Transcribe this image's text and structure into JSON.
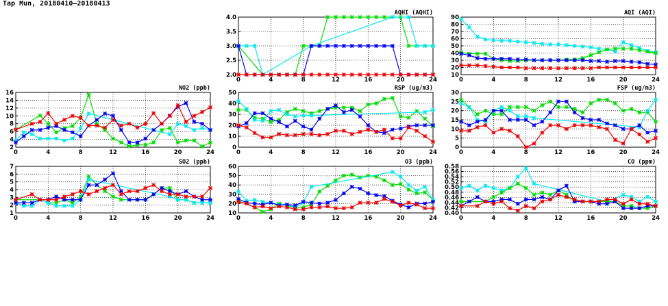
{
  "page_title": "Tap Mun, 20180410–20180413",
  "colors": {
    "red": "#ee0000",
    "blue": "#0000ee",
    "green": "#00dd00",
    "cyan": "#00e8f0"
  },
  "chart_data": [
    {
      "id": "no2",
      "type": "line",
      "title": "NO2 (ppb)",
      "ylim": [
        2,
        16
      ],
      "yticks": [
        2,
        4,
        6,
        8,
        10,
        12,
        14,
        16
      ],
      "ytick_decimals": 0,
      "xlim": [
        0,
        24
      ],
      "xticks": [
        0,
        4,
        8,
        12,
        16,
        20,
        24
      ],
      "grid": true,
      "series": [
        {
          "name": "green",
          "values": [
            6.5,
            null,
            null,
            10.1,
            8,
            5.8,
            6.9,
            7.4,
            9.5,
            15.4,
            8,
            6.4,
            4.2,
            3.2,
            2.2,
            2.6,
            2.6,
            3.2,
            6.4,
            6.9,
            3.2,
            3.7,
            3.7,
            2.2,
            3.2
          ]
        },
        {
          "name": "cyan",
          "values": [
            3.7,
            5.8,
            5.3,
            4.2,
            4.2,
            4.2,
            3.7,
            4.2,
            6.9,
            10.6,
            null,
            null,
            null,
            null,
            null,
            null,
            null,
            null,
            null,
            5.3,
            8,
            7.4,
            6.4,
            6.9,
            6.4
          ]
        },
        {
          "name": "blue",
          "values": [
            3.2,
            4.8,
            6.4,
            6.4,
            7,
            7.4,
            6.4,
            5.8,
            4.8,
            7.5,
            9,
            10.6,
            10,
            6.4,
            3.2,
            3.2,
            4.2,
            6.4,
            8,
            10.1,
            12.3,
            13.3,
            8.5,
            8,
            6.4
          ]
        },
        {
          "name": "red",
          "values": [
            6.5,
            null,
            8,
            8.5,
            10.7,
            8,
            9,
            10,
            9.5,
            7.5,
            7.5,
            7,
            9,
            7.5,
            8,
            7,
            8,
            10.7,
            8,
            10,
            12.7,
            8.5,
            10,
            11,
            12.2
          ]
        }
      ]
    },
    {
      "id": "so2",
      "type": "line",
      "title": "SO2 (ppb)",
      "ylim": [
        1,
        7
      ],
      "yticks": [
        1,
        2,
        3,
        4,
        5,
        6,
        7
      ],
      "ytick_decimals": 0,
      "xlim": [
        0,
        24
      ],
      "xticks": [
        0,
        4,
        8,
        12,
        16,
        20,
        24
      ],
      "grid": true,
      "series": [
        {
          "name": "green",
          "values": [
            2.7,
            null,
            null,
            2.7,
            2.3,
            2.3,
            2.7,
            2.3,
            3.1,
            5.7,
            4.6,
            3.8,
            3.1,
            2.7,
            2.7,
            2.7,
            2.7,
            3.4,
            4.2,
            4.2,
            2.7,
            2.7,
            2.3,
            2.3,
            2.3
          ]
        },
        {
          "name": "cyan",
          "values": [
            2.3,
            1.9,
            1.9,
            2.7,
            2.3,
            1.9,
            1.9,
            1.9,
            2.7,
            5.3,
            null,
            null,
            null,
            null,
            null,
            null,
            null,
            null,
            null,
            3.1,
            2.7,
            2.7,
            2.3,
            2.3,
            2.3
          ]
        },
        {
          "name": "blue",
          "values": [
            2.3,
            2.3,
            2.3,
            2.7,
            2.7,
            3.1,
            2.7,
            2.7,
            2.7,
            4.6,
            4.6,
            5.3,
            6.1,
            3.8,
            2.7,
            2.7,
            2.7,
            3.4,
            4.2,
            3.8,
            3.4,
            3.8,
            3.1,
            2.7,
            2.7
          ]
        },
        {
          "name": "red",
          "values": [
            2.7,
            null,
            3.4,
            2.7,
            2.7,
            2.7,
            3.1,
            3.4,
            3.8,
            3.4,
            3.8,
            4.2,
            4.6,
            3.4,
            3.8,
            3.8,
            4.2,
            4.6,
            3.8,
            3.4,
            3.4,
            3.1,
            3.1,
            3.1,
            4.2
          ]
        }
      ]
    },
    {
      "id": "aqhi",
      "type": "line",
      "title": "AQHI (AQHI)",
      "ylim": [
        2,
        4
      ],
      "yticks": [
        2,
        2.5,
        3,
        3.5,
        4
      ],
      "ytick_decimals": 1,
      "xlim": [
        0,
        24
      ],
      "xticks": [
        0,
        4,
        8,
        12,
        16,
        20,
        24
      ],
      "grid": true,
      "series": [
        {
          "name": "green",
          "values": [
            3,
            null,
            null,
            2,
            2,
            2,
            2,
            2,
            3,
            3,
            3,
            4,
            4,
            4,
            4,
            4,
            4,
            4,
            4,
            4,
            4,
            3,
            3,
            3,
            3
          ]
        },
        {
          "name": "cyan",
          "values": [
            3,
            3,
            3,
            2,
            null,
            null,
            null,
            null,
            null,
            3,
            null,
            null,
            null,
            null,
            null,
            null,
            null,
            null,
            null,
            4,
            null,
            4,
            3,
            3,
            3
          ]
        },
        {
          "name": "blue",
          "values": [
            3,
            2,
            2,
            2,
            2,
            2,
            2,
            2,
            2,
            3,
            3,
            3,
            3,
            3,
            3,
            3,
            3,
            3,
            3,
            3,
            2,
            2,
            2,
            2,
            2
          ]
        },
        {
          "name": "red",
          "values": [
            2,
            2,
            2,
            2,
            2,
            2,
            2,
            2,
            2,
            2,
            2,
            2,
            2,
            2,
            2,
            2,
            2,
            2,
            2,
            2,
            2,
            2,
            2,
            2,
            2
          ]
        }
      ]
    },
    {
      "id": "rsp",
      "type": "line",
      "title": "RSP (ug/m3)",
      "ylim": [
        0,
        50
      ],
      "yticks": [
        0,
        10,
        20,
        30,
        40,
        50
      ],
      "ytick_decimals": 0,
      "xlim": [
        0,
        24
      ],
      "xticks": [
        0,
        4,
        8,
        12,
        16,
        20,
        24
      ],
      "grid": true,
      "series": [
        {
          "name": "green",
          "values": [
            34,
            34,
            27,
            26,
            23,
            25,
            32,
            35,
            33,
            31,
            33,
            35,
            36,
            36,
            36,
            33,
            39,
            40,
            44,
            45,
            28,
            27,
            33,
            26,
            19
          ]
        },
        {
          "name": "cyan",
          "values": [
            42,
            35,
            25,
            24,
            33,
            34,
            30,
            28,
            29,
            29,
            null,
            null,
            null,
            null,
            null,
            null,
            null,
            null,
            null,
            null,
            null,
            null,
            null,
            32,
            34
          ]
        },
        {
          "name": "blue",
          "values": [
            19,
            22,
            31,
            31,
            26,
            23,
            19,
            24,
            19,
            16,
            26,
            35,
            38,
            32,
            34,
            28,
            20,
            14,
            13,
            16,
            17,
            19,
            20,
            20,
            20
          ]
        },
        {
          "name": "red",
          "values": [
            20,
            18,
            13,
            9,
            9,
            12,
            11,
            11,
            12,
            12,
            11,
            12,
            15,
            15,
            12,
            14,
            16,
            14,
            16,
            8,
            8,
            18,
            15,
            10,
            5
          ]
        }
      ]
    },
    {
      "id": "o3",
      "type": "line",
      "title": "O3 (ppb)",
      "ylim": [
        10,
        60
      ],
      "yticks": [
        10,
        20,
        30,
        40,
        50,
        60
      ],
      "ytick_decimals": 0,
      "xlim": [
        0,
        24
      ],
      "xticks": [
        0,
        4,
        8,
        12,
        16,
        20,
        24
      ],
      "grid": true,
      "series": [
        {
          "name": "green",
          "values": [
            23,
            null,
            16,
            11,
            14,
            20,
            18,
            15,
            16,
            19,
            33,
            39,
            45,
            50,
            51,
            48,
            50,
            49,
            45,
            40,
            41,
            35,
            31,
            32,
            24
          ]
        },
        {
          "name": "cyan",
          "values": [
            33,
            23,
            24,
            22,
            21,
            19,
            19,
            16,
            21,
            38,
            null,
            null,
            null,
            null,
            null,
            null,
            null,
            null,
            null,
            54,
            49,
            40,
            34,
            38,
            24
          ]
        },
        {
          "name": "blue",
          "values": [
            25,
            21,
            20,
            19,
            21,
            18,
            19,
            18,
            22,
            21,
            20,
            21,
            24,
            31,
            38,
            36,
            31,
            29,
            28,
            23,
            19,
            16,
            20,
            20,
            22
          ]
        },
        {
          "name": "red",
          "values": [
            22,
            20,
            16,
            17,
            15,
            17,
            16,
            14,
            14,
            16,
            16,
            17,
            15,
            15,
            16,
            21,
            21,
            21,
            25,
            22,
            18,
            21,
            19,
            15,
            15
          ]
        }
      ]
    },
    {
      "id": "aqi",
      "type": "line",
      "title": "AQI (AQI)",
      "ylim": [
        10,
        90
      ],
      "yticks": [
        10,
        20,
        30,
        40,
        50,
        60,
        70,
        80,
        90
      ],
      "ytick_decimals": 0,
      "xlim": [
        0,
        24
      ],
      "xticks": [
        0,
        4,
        8,
        12,
        16,
        20,
        24
      ],
      "grid": true,
      "series": [
        {
          "name": "cyan",
          "values": [
            87,
            76,
            63,
            59,
            58,
            57,
            57,
            56,
            55,
            54,
            53,
            52,
            52,
            51,
            50,
            49,
            48,
            46,
            45,
            42,
            55,
            51,
            47,
            43,
            41
          ]
        },
        {
          "name": "green",
          "values": [
            41,
            39,
            39,
            39,
            32,
            30,
            29,
            29,
            30,
            30,
            30,
            30,
            30,
            31,
            31,
            33,
            37,
            41,
            45,
            46,
            46,
            46,
            44,
            42,
            40
          ]
        },
        {
          "name": "blue",
          "values": [
            39,
            37,
            33,
            32,
            32,
            32,
            32,
            31,
            31,
            30,
            30,
            30,
            30,
            30,
            30,
            30,
            29,
            29,
            28,
            29,
            29,
            28,
            27,
            25,
            24
          ]
        },
        {
          "name": "red",
          "values": [
            23,
            23,
            23,
            22,
            21,
            20,
            20,
            20,
            19,
            19,
            19,
            19,
            19,
            19,
            19,
            19,
            19,
            20,
            20,
            20,
            20,
            20,
            20,
            20,
            20
          ]
        }
      ]
    },
    {
      "id": "fsp",
      "type": "line",
      "title": "FSP (ug/m3)",
      "ylim": [
        0,
        30
      ],
      "yticks": [
        0,
        5,
        10,
        15,
        20,
        25,
        30
      ],
      "ytick_decimals": 0,
      "xlim": [
        0,
        24
      ],
      "xticks": [
        0,
        4,
        8,
        12,
        16,
        20,
        24
      ],
      "grid": true,
      "series": [
        {
          "name": "green",
          "values": [
            26,
            22,
            18,
            20,
            18,
            18,
            22,
            22,
            22,
            20,
            23,
            25,
            22,
            22,
            21,
            19,
            24,
            26,
            26,
            24,
            20,
            21,
            19,
            19,
            14
          ]
        },
        {
          "name": "cyan",
          "values": [
            24,
            22,
            15,
            14,
            20,
            22,
            20,
            17,
            17,
            16,
            null,
            null,
            null,
            null,
            null,
            null,
            null,
            null,
            null,
            null,
            null,
            null,
            11,
            20,
            26
          ]
        },
        {
          "name": "blue",
          "values": [
            14,
            12,
            14,
            15,
            20,
            20,
            15,
            15,
            15,
            12,
            14,
            19,
            25,
            25,
            19,
            16,
            15,
            15,
            13,
            12,
            10,
            10,
            12,
            8,
            9
          ]
        },
        {
          "name": "red",
          "values": [
            9,
            9,
            11,
            12,
            8,
            10,
            9,
            6,
            0,
            2,
            8,
            12,
            12,
            10,
            12,
            12,
            12,
            11,
            10,
            4,
            2,
            10,
            7,
            3,
            5
          ]
        }
      ]
    },
    {
      "id": "co",
      "type": "line",
      "title": "CO (ppm)",
      "ylim": [
        0.4,
        0.58
      ],
      "yticks": [
        0.4,
        0.42,
        0.44,
        0.46,
        0.48,
        0.5,
        0.52,
        0.54,
        0.56,
        0.58
      ],
      "ytick_decimals": 2,
      "xlim": [
        0,
        24
      ],
      "xticks": [
        0,
        4,
        8,
        12,
        16,
        20,
        24
      ],
      "grid": true,
      "series": [
        {
          "name": "cyan",
          "values": [
            0.496,
            0.505,
            0.487,
            0.505,
            0.496,
            0.487,
            0.496,
            0.54,
            0.573,
            0.513,
            null,
            null,
            null,
            null,
            null,
            null,
            null,
            null,
            0.444,
            null,
            0.47,
            0.462,
            0.444,
            0.462,
            0.444
          ]
        },
        {
          "name": "green",
          "values": [
            0.444,
            null,
            null,
            0.444,
            0.461,
            0.478,
            0.496,
            0.513,
            0.496,
            0.47,
            0.478,
            0.47,
            0.487,
            0.47,
            0.444,
            0.444,
            0.444,
            0.444,
            0.444,
            0.444,
            0.427,
            0.427,
            0.418,
            0.418,
            0.427
          ]
        },
        {
          "name": "blue",
          "values": [
            0.427,
            0.444,
            0.461,
            0.444,
            0.444,
            0.452,
            0.452,
            0.435,
            0.452,
            0.452,
            0.461,
            0.452,
            0.487,
            0.505,
            0.444,
            0.444,
            0.444,
            0.435,
            0.435,
            0.444,
            0.418,
            0.418,
            0.418,
            0.427,
            0.427
          ]
        },
        {
          "name": "red",
          "values": [
            0.427,
            null,
            0.427,
            0.444,
            0.435,
            0.444,
            0.418,
            0.409,
            0.427,
            0.418,
            0.444,
            0.452,
            0.47,
            0.461,
            0.452,
            0.444,
            0.444,
            0.444,
            0.452,
            0.452,
            0.435,
            0.452,
            0.435,
            0.435,
            0.427
          ]
        }
      ]
    }
  ]
}
